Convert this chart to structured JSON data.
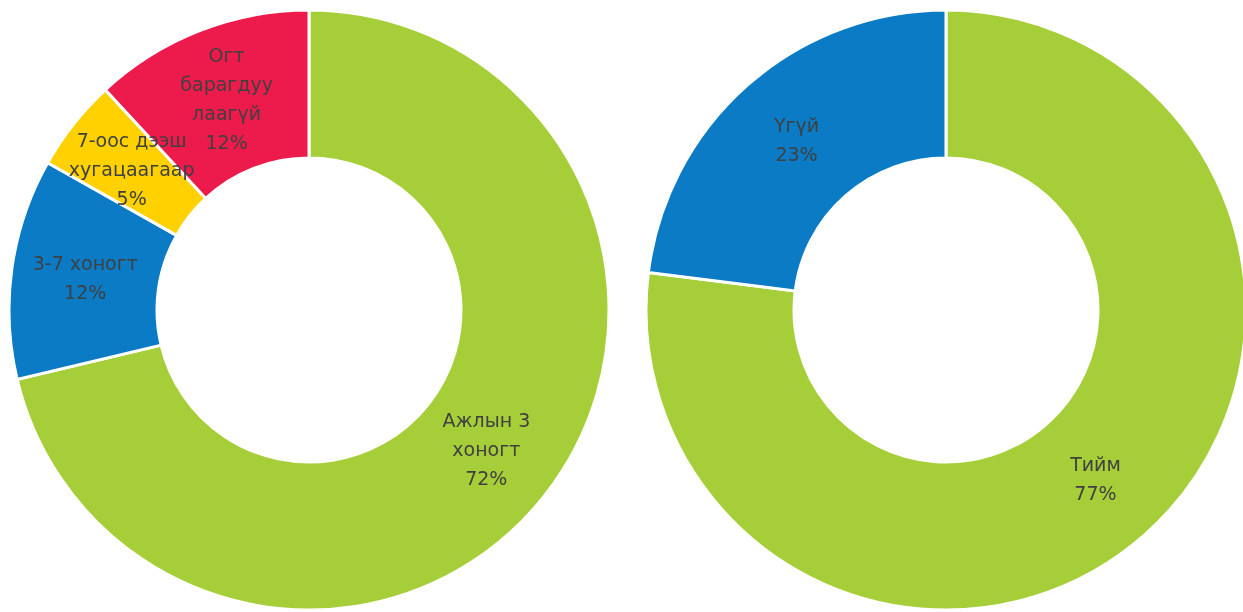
{
  "chart_data": [
    {
      "type": "donut",
      "categories": [
        "Ажлын 3 хоногт",
        "3-7 хоногт",
        "7-оос дээш хугацаагаар",
        "Огт барагдуу лаагүй"
      ],
      "values": [
        72,
        12,
        5,
        12
      ],
      "value_labels": [
        "72%",
        "12%",
        "5%",
        "12%"
      ],
      "colors": [
        "#a6ce39",
        "#0a7bc4",
        "#ffd100",
        "#ed1b4b"
      ]
    },
    {
      "type": "donut",
      "categories": [
        "Тийм",
        "Үгүй"
      ],
      "values": [
        77,
        23
      ],
      "value_labels": [
        "77%",
        "23%"
      ],
      "colors": [
        "#a6ce39",
        "#0a7bc4"
      ]
    }
  ]
}
